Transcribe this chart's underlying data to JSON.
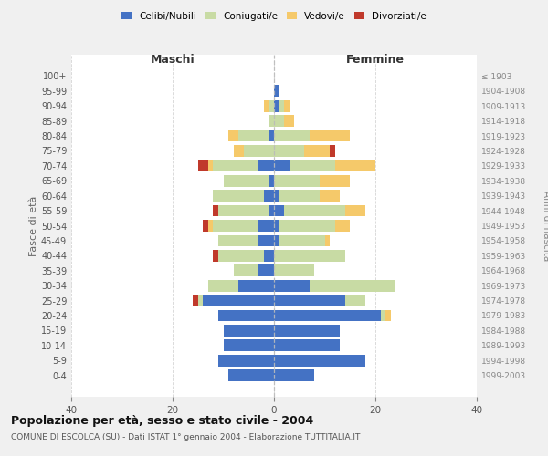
{
  "age_groups": [
    "0-4",
    "5-9",
    "10-14",
    "15-19",
    "20-24",
    "25-29",
    "30-34",
    "35-39",
    "40-44",
    "45-49",
    "50-54",
    "55-59",
    "60-64",
    "65-69",
    "70-74",
    "75-79",
    "80-84",
    "85-89",
    "90-94",
    "95-99",
    "100+"
  ],
  "birth_years": [
    "1999-2003",
    "1994-1998",
    "1989-1993",
    "1984-1988",
    "1979-1983",
    "1974-1978",
    "1969-1973",
    "1964-1968",
    "1959-1963",
    "1954-1958",
    "1949-1953",
    "1944-1948",
    "1939-1943",
    "1934-1938",
    "1929-1933",
    "1924-1928",
    "1919-1923",
    "1914-1918",
    "1909-1913",
    "1904-1908",
    "≤ 1903"
  ],
  "colors": {
    "celibi": "#4472C4",
    "coniugati": "#c8dba4",
    "vedovi": "#f5c96a",
    "divorziati": "#c0392b"
  },
  "male": {
    "celibi": [
      9,
      11,
      10,
      10,
      11,
      14,
      7,
      3,
      2,
      3,
      3,
      1,
      2,
      1,
      3,
      0,
      1,
      0,
      0,
      0,
      0
    ],
    "coniugati": [
      0,
      0,
      0,
      0,
      0,
      1,
      6,
      5,
      9,
      8,
      9,
      10,
      10,
      9,
      9,
      6,
      6,
      1,
      1,
      0,
      0
    ],
    "vedovi": [
      0,
      0,
      0,
      0,
      0,
      0,
      0,
      0,
      0,
      0,
      1,
      0,
      0,
      0,
      1,
      2,
      2,
      0,
      1,
      0,
      0
    ],
    "divorziati": [
      0,
      0,
      0,
      0,
      0,
      1,
      0,
      0,
      1,
      0,
      1,
      1,
      0,
      0,
      2,
      0,
      0,
      0,
      0,
      0,
      0
    ]
  },
  "female": {
    "nubili": [
      8,
      18,
      13,
      13,
      21,
      14,
      7,
      0,
      0,
      1,
      1,
      2,
      1,
      0,
      3,
      0,
      0,
      0,
      1,
      1,
      0
    ],
    "coniugate": [
      0,
      0,
      0,
      0,
      1,
      4,
      17,
      8,
      14,
      9,
      11,
      12,
      8,
      9,
      9,
      6,
      7,
      2,
      1,
      0,
      0
    ],
    "vedove": [
      0,
      0,
      0,
      0,
      1,
      0,
      0,
      0,
      0,
      1,
      3,
      4,
      4,
      6,
      8,
      5,
      8,
      2,
      1,
      0,
      0
    ],
    "divorziate": [
      0,
      0,
      0,
      0,
      0,
      0,
      0,
      0,
      0,
      0,
      0,
      0,
      0,
      0,
      0,
      1,
      0,
      0,
      0,
      0,
      0
    ]
  },
  "title": "Popolazione per età, sesso e stato civile - 2004",
  "subtitle": "COMUNE DI ESCOLCA (SU) - Dati ISTAT 1° gennaio 2004 - Elaborazione TUTTITALIA.IT",
  "xlabel_left": "Maschi",
  "xlabel_right": "Femmine",
  "ylabel_left": "Fasce di età",
  "ylabel_right": "Anni di nascita",
  "xlim": 40,
  "legend_labels": [
    "Celibi/Nubili",
    "Coniugati/e",
    "Vedovi/e",
    "Divorziati/e"
  ],
  "bg_color": "#f0f0f0",
  "plot_bg_color": "#ffffff"
}
